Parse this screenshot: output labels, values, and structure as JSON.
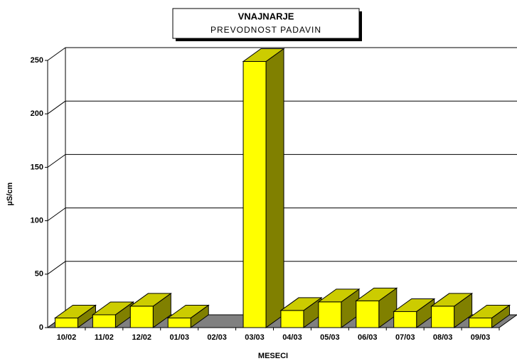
{
  "chart_data": {
    "type": "bar3d",
    "title": "VNAJNARJE",
    "subtitle": "PREVODNOST PADAVIN",
    "y_label": "µS/cm",
    "x_label": "MESECI",
    "categories": [
      "10/02",
      "11/02",
      "12/02",
      "01/03",
      "02/03",
      "03/03",
      "04/03",
      "05/03",
      "06/03",
      "07/03",
      "08/03",
      "09/03"
    ],
    "values": [
      9,
      12,
      20,
      9,
      null,
      249,
      16,
      24,
      25,
      15,
      20,
      9
    ],
    "color": "#ffff00",
    "ylim": [
      0,
      250
    ],
    "yticks": [
      0,
      50,
      100,
      150,
      200,
      250
    ],
    "grid": true
  }
}
